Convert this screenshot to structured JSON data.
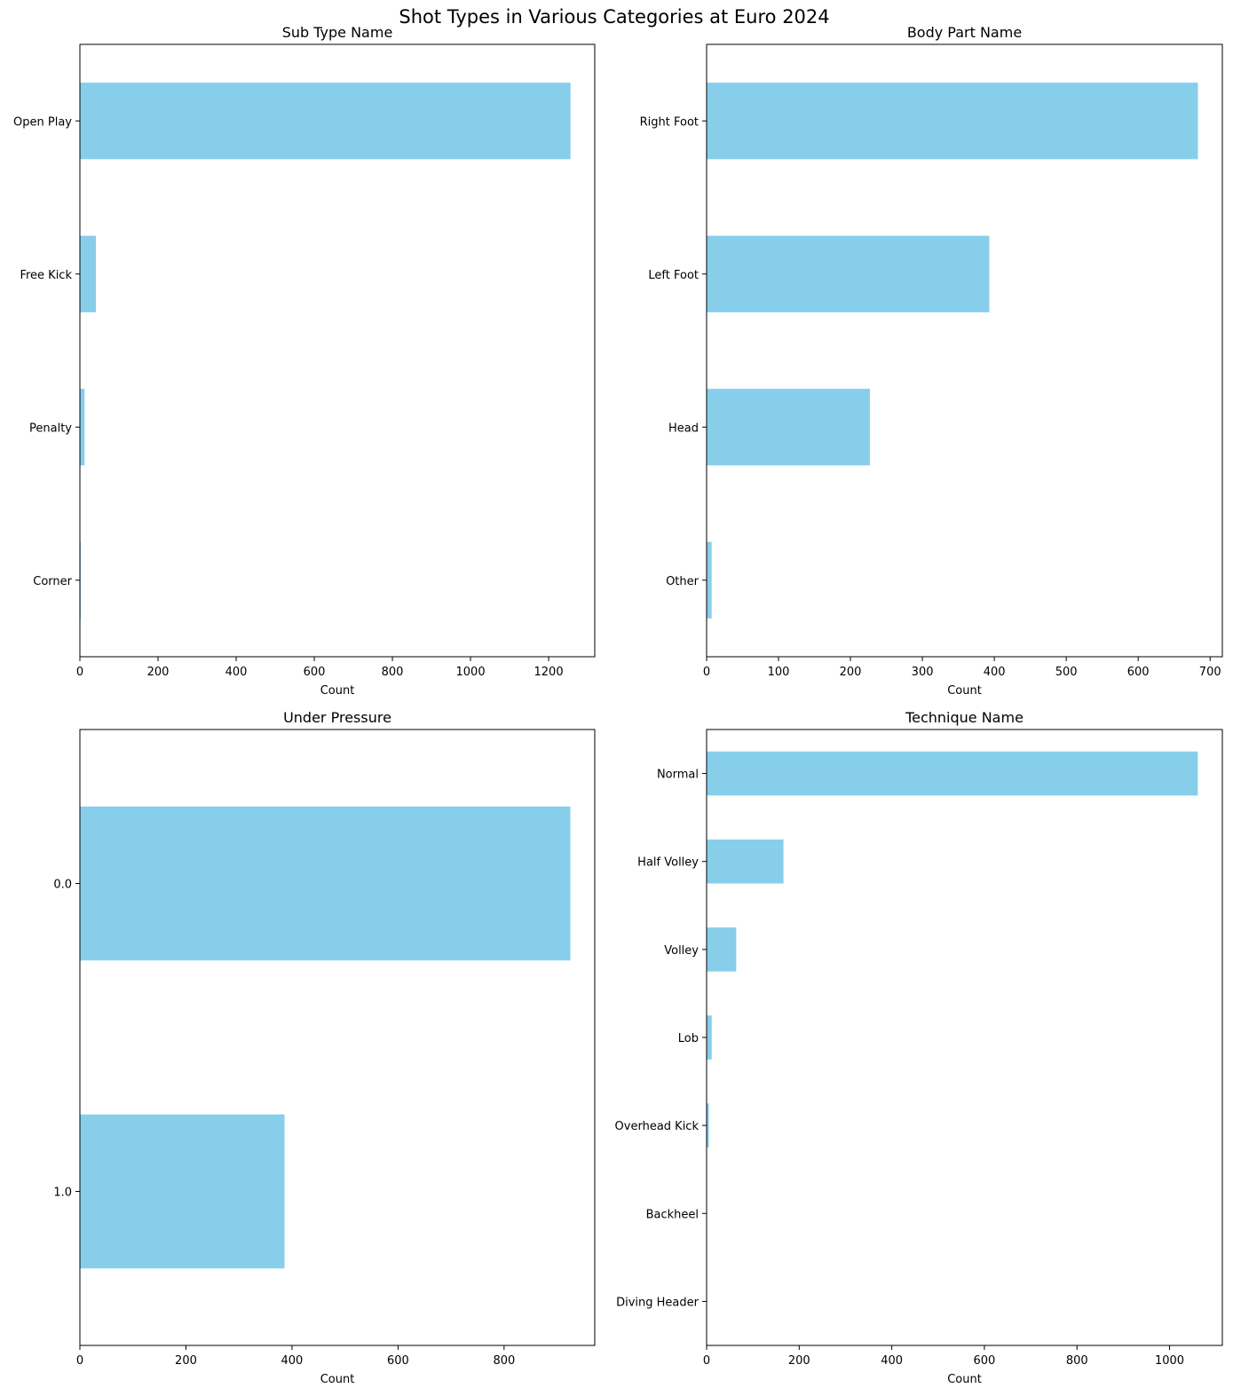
{
  "figure": {
    "suptitle": "Shot Types in Various Categories at Euro 2024",
    "bar_color": "#87CEEB"
  },
  "chart_data": [
    {
      "type": "bar",
      "orientation": "horizontal",
      "title": "Sub Type Name",
      "xlabel": "Count",
      "ylabel": "",
      "categories": [
        "Open Play",
        "Free Kick",
        "Penalty",
        "Corner"
      ],
      "values": [
        1256,
        41,
        12,
        2
      ],
      "xlim": [
        0,
        1318
      ],
      "xticks": [
        0,
        200,
        400,
        600,
        800,
        1000,
        1200
      ],
      "grid": false
    },
    {
      "type": "bar",
      "orientation": "horizontal",
      "title": "Body Part Name",
      "xlabel": "Count",
      "ylabel": "",
      "categories": [
        "Right Foot",
        "Left Foot",
        "Head",
        "Other"
      ],
      "values": [
        683,
        393,
        227,
        7
      ],
      "xlim": [
        0,
        717
      ],
      "xticks": [
        0,
        100,
        200,
        300,
        400,
        500,
        600,
        700
      ],
      "grid": false
    },
    {
      "type": "bar",
      "orientation": "horizontal",
      "title": "Under Pressure",
      "xlabel": "Count",
      "ylabel": "",
      "categories": [
        "0.0",
        "1.0"
      ],
      "values": [
        925,
        386
      ],
      "xlim": [
        0,
        971
      ],
      "xticks": [
        0,
        200,
        400,
        600,
        800
      ],
      "grid": false
    },
    {
      "type": "bar",
      "orientation": "horizontal",
      "title": "Technique Name",
      "xlabel": "Count",
      "ylabel": "",
      "categories": [
        "Normal",
        "Half Volley",
        "Volley",
        "Lob",
        "Overhead Kick",
        "Backheel",
        "Diving Header"
      ],
      "values": [
        1061,
        166,
        64,
        11,
        5,
        1,
        1
      ],
      "xlim": [
        0,
        1114
      ],
      "xticks": [
        0,
        200,
        400,
        600,
        800,
        1000
      ],
      "grid": false
    }
  ]
}
